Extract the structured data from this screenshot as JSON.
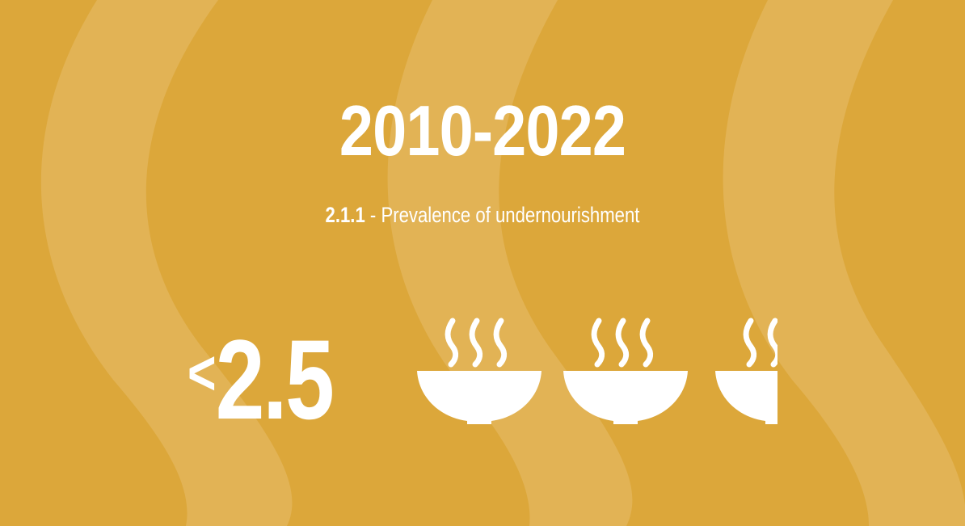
{
  "header": {
    "period": "2010-2022",
    "indicator_code": "2.1.1",
    "indicator_separator": " - ",
    "indicator_title": "Prevalence of undernourishment"
  },
  "metric": {
    "comparator": "<",
    "value": "2.5",
    "icon": "bowl-icon",
    "icons_shown": 2.5
  },
  "colors": {
    "background": "#dca73a",
    "wave": "#e2b355",
    "foreground": "#ffffff"
  }
}
